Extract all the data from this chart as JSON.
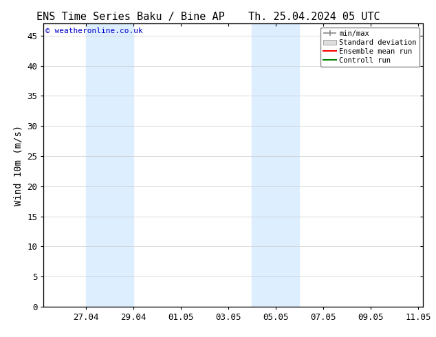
{
  "title_left": "ENS Time Series Baku / Bine AP",
  "title_right": "Th. 25.04.2024 05 UTC",
  "ylabel": "Wind 10m (m/s)",
  "watermark": "© weatheronline.co.uk",
  "ylim": [
    0,
    47
  ],
  "yticks": [
    0,
    5,
    10,
    15,
    20,
    25,
    30,
    35,
    40,
    45
  ],
  "xtick_labels": [
    "27.04",
    "29.04",
    "01.05",
    "03.05",
    "05.05",
    "07.05",
    "09.05",
    "11.05"
  ],
  "shade_color": "#ddeeff",
  "background_color": "#ffffff",
  "legend_items": [
    {
      "label": "min/max",
      "color": "#aaaaaa"
    },
    {
      "label": "Standard deviation",
      "color": "#cccccc"
    },
    {
      "label": "Ensemble mean run",
      "color": "#ff0000"
    },
    {
      "label": "Controll run",
      "color": "#008000"
    }
  ],
  "title_fontsize": 11,
  "label_fontsize": 10,
  "tick_fontsize": 9,
  "watermark_color": "#0000cc",
  "watermark_fontsize": 8
}
